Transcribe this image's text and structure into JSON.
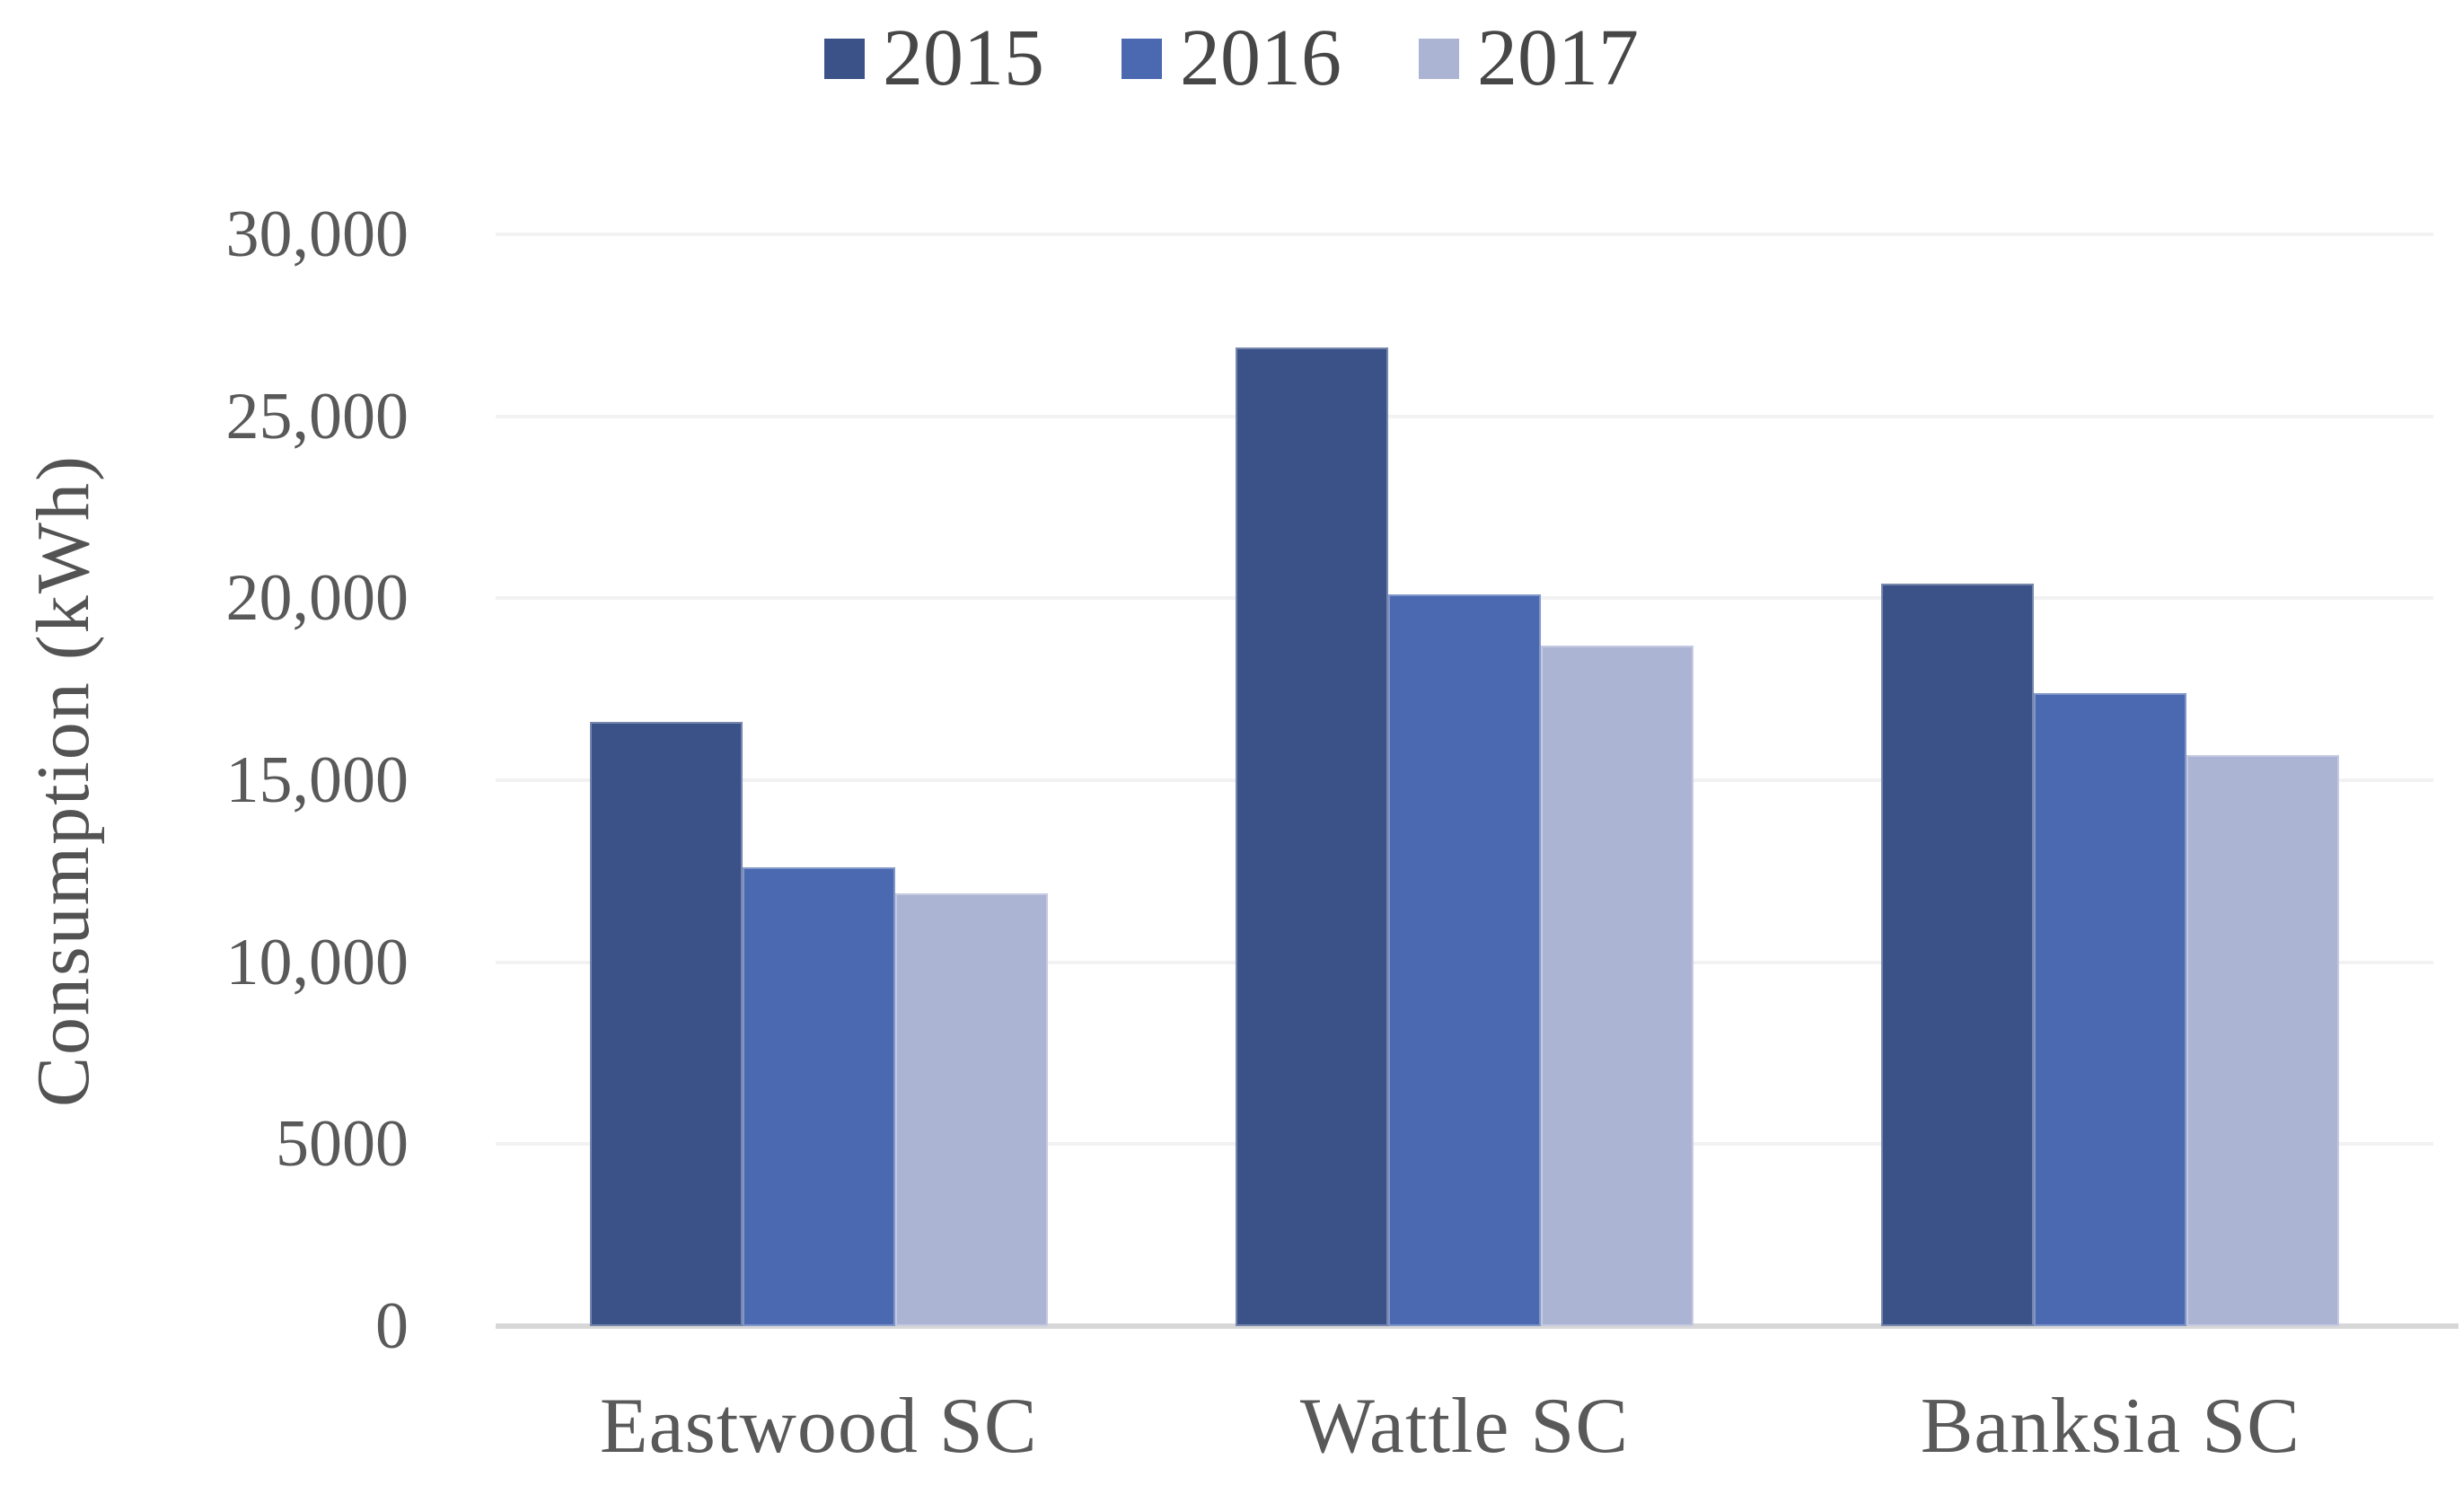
{
  "chart_data": {
    "type": "bar",
    "title": "",
    "categories": [
      "Eastwood SC",
      "Wattle SC",
      "Banksia SC"
    ],
    "series": [
      {
        "name": "2015",
        "color": "#3B5289",
        "values": [
          16600,
          26900,
          20400
        ]
      },
      {
        "name": "2016",
        "color": "#4B69B1",
        "values": [
          12600,
          20100,
          17400
        ]
      },
      {
        "name": "2017",
        "color": "#ACB4D4",
        "values": [
          11900,
          18700,
          15700
        ]
      }
    ],
    "xlabel": "",
    "ylabel": "Consumption (kWh)",
    "ylim": [
      0,
      30000
    ],
    "ytick_step": 5000,
    "ytick_labels_top_to_bottom": [
      "30,000",
      "25,000",
      "20,000",
      "15,000",
      "10,000",
      "5000",
      "0"
    ],
    "grid": "horizontal",
    "legend_position": "top"
  },
  "style": {
    "background": "#FFFFFF",
    "grid_color": "#F2F2F2",
    "axis_line_color": "#D7D7D7",
    "tick_text_color": "#595959",
    "category_text_color": "#595959",
    "legend_text_color": "#474747",
    "axis_title_color": "#535353"
  }
}
